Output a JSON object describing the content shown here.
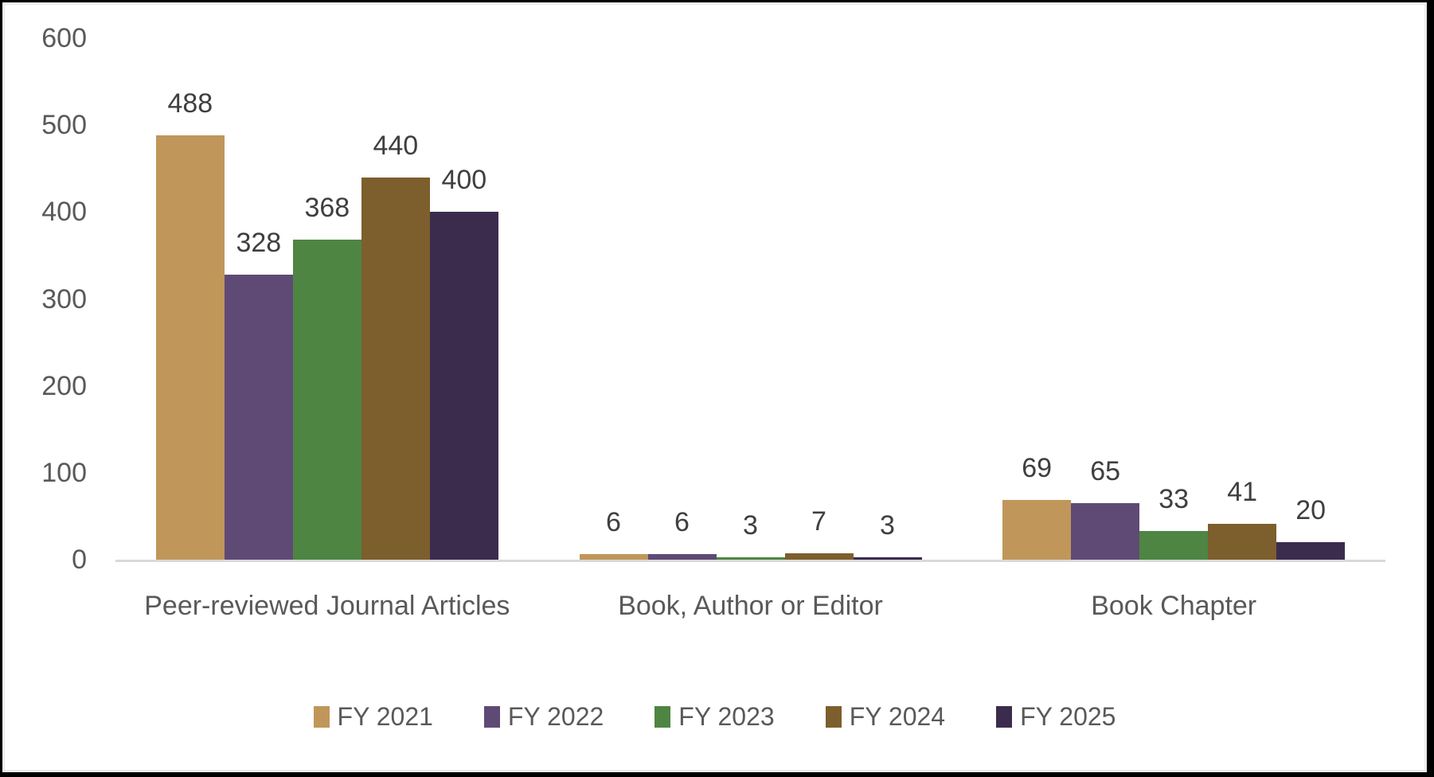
{
  "chart_data": {
    "type": "bar",
    "title": "",
    "xlabel": "",
    "ylabel": "",
    "categories": [
      "Peer-reviewed Journal Articles",
      "Book, Author or Editor",
      "Book Chapter"
    ],
    "series": [
      {
        "name": "FY 2021",
        "color": "#C0965A",
        "values": [
          488,
          6,
          69
        ]
      },
      {
        "name": "FY 2022",
        "color": "#5F4A75",
        "values": [
          328,
          6,
          65
        ]
      },
      {
        "name": "FY 2023",
        "color": "#4E8542",
        "values": [
          368,
          3,
          33
        ]
      },
      {
        "name": "FY 2024",
        "color": "#7D5E2D",
        "values": [
          440,
          7,
          41
        ]
      },
      {
        "name": "FY 2025",
        "color": "#3B2C4D",
        "values": [
          400,
          3,
          20
        ]
      }
    ],
    "ylim": [
      0,
      600
    ],
    "yticks": [
      600,
      500,
      400,
      300,
      200,
      100,
      0
    ],
    "grid": false,
    "data_labels": true,
    "legend_position": "bottom"
  },
  "colors": {
    "background": "#FFFFFF",
    "frame_border": "#000000",
    "axis_line": "#D9D9D9",
    "axis_text": "#595959",
    "data_label_text": "#3F3F3F",
    "category_text": "#595959",
    "legend_text": "#595959"
  }
}
